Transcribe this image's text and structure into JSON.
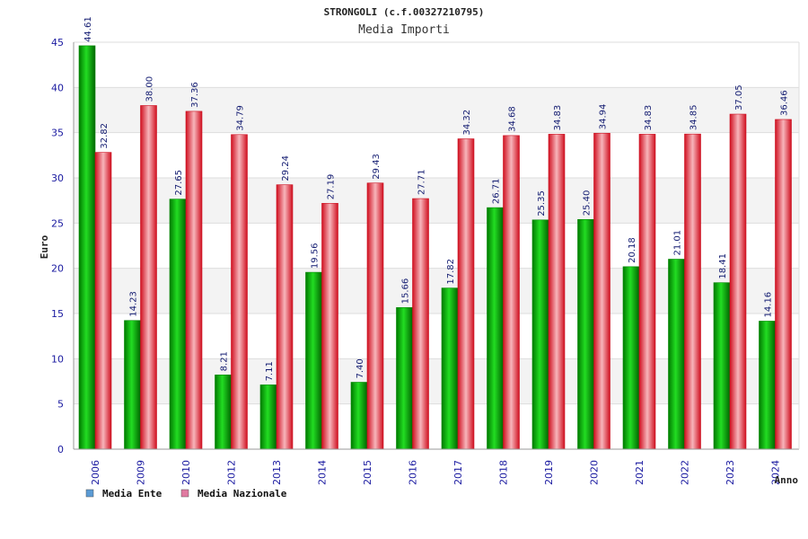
{
  "chart_data": {
    "type": "bar",
    "title": "STRONGOLI (c.f.00327210795)",
    "subtitle": "Media Importi",
    "xlabel": "Anno",
    "ylabel": "Euro",
    "ylim": [
      0,
      45
    ],
    "yticks": [
      0,
      5,
      10,
      15,
      20,
      25,
      30,
      35,
      40,
      45
    ],
    "grid": true,
    "legend_position": "bottom-left",
    "categories": [
      "2006",
      "2009",
      "2010",
      "2012",
      "2013",
      "2014",
      "2015",
      "2016",
      "2017",
      "2018",
      "2019",
      "2020",
      "2021",
      "2022",
      "2023",
      "2024"
    ],
    "series": [
      {
        "name": "Media Ente",
        "color": "#00bb00",
        "legend_color": "#5b9bd5",
        "values": [
          44.61,
          14.23,
          27.65,
          8.21,
          7.11,
          19.56,
          7.4,
          15.66,
          17.82,
          26.71,
          25.35,
          25.4,
          20.18,
          21.01,
          18.41,
          14.16
        ],
        "labels": [
          "44.61",
          "14.23",
          "27.65",
          "8.21",
          "7.11",
          "19.56",
          "7.40",
          "15.66",
          "17.82",
          "26.71",
          "25.35",
          "25.40",
          "20.18",
          "21.01",
          "18.41",
          "14.16"
        ]
      },
      {
        "name": "Media Nazionale",
        "color": "#ee1c2a",
        "legend_color": "#e07aa0",
        "values": [
          32.82,
          38.0,
          37.36,
          34.79,
          29.24,
          27.19,
          29.43,
          27.71,
          34.32,
          34.68,
          34.83,
          34.94,
          34.83,
          34.85,
          37.05,
          36.46
        ],
        "labels": [
          "32.82",
          "38.00",
          "37.36",
          "34.79",
          "29.24",
          "27.19",
          "29.43",
          "27.71",
          "34.32",
          "34.68",
          "34.83",
          "34.94",
          "34.83",
          "34.85",
          "37.05",
          "36.46"
        ]
      }
    ]
  }
}
